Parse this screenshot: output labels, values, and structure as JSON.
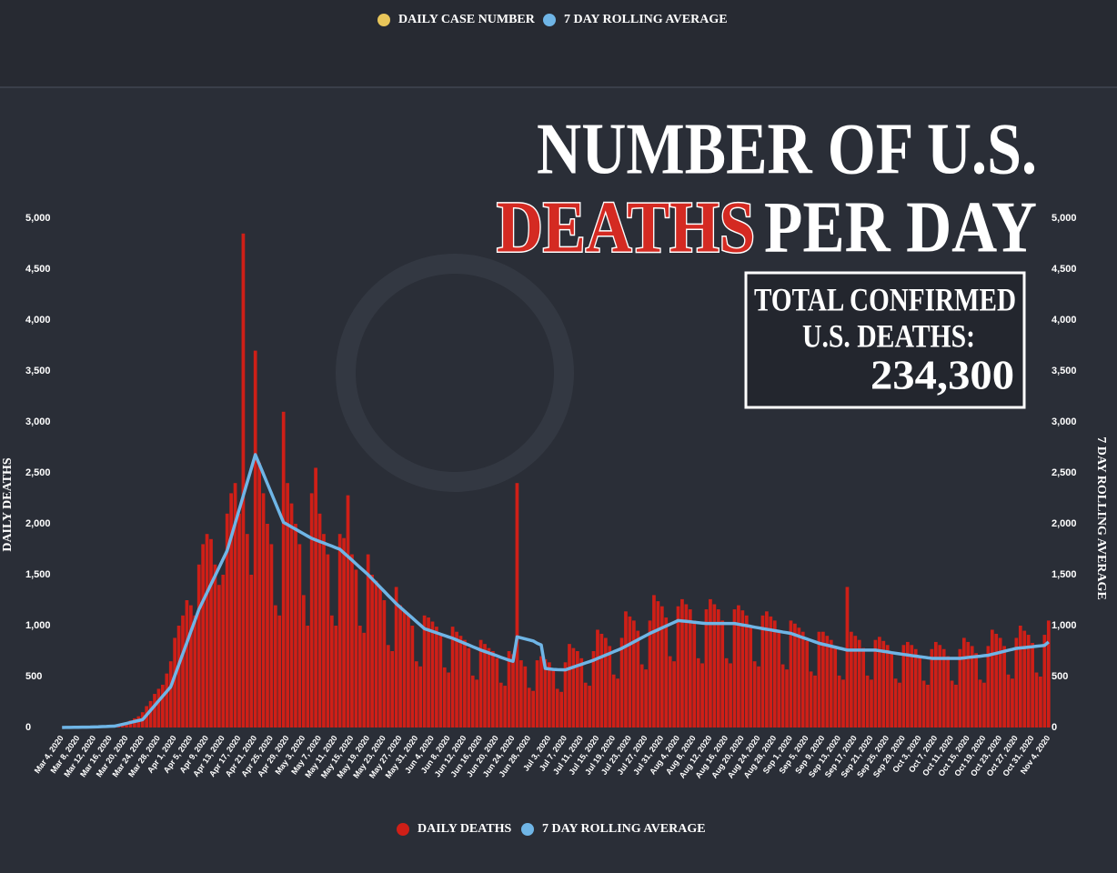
{
  "chart_data": {
    "type": "bar",
    "top_legend": [
      {
        "name": "DAILY CASE NUMBER",
        "color": "#e8c55a"
      },
      {
        "name": "7 DAY ROLLING AVERAGE",
        "color": "#6fb5e6"
      }
    ],
    "title": {
      "line1": "NUMBER OF U.S.",
      "highlight": "DEATHS",
      "line2_rest": "PER DAY"
    },
    "total_box": {
      "line1": "TOTAL CONFIRMED",
      "line2": "U.S. DEATHS:",
      "total": "234,300"
    },
    "y_label": "DAILY DEATHS",
    "y2_label": "7 DAY ROLLING AVERAGE",
    "ylim": [
      0,
      5000
    ],
    "yticks": [
      0,
      500,
      {
        "value": 1000,
        "label": "1,000"
      },
      {
        "value": 1500,
        "label": "1,500"
      },
      {
        "value": 2000,
        "label": "2,000"
      },
      {
        "value": 2500,
        "label": "2,500"
      },
      {
        "value": 3000,
        "label": "3,000"
      },
      {
        "value": 3500,
        "label": "3,500"
      },
      {
        "value": 4000,
        "label": "4,000"
      },
      {
        "value": 4500,
        "label": "4,500"
      },
      {
        "value": 5000,
        "label": "5,000"
      }
    ],
    "y2lim": [
      0,
      5000
    ],
    "y2ticks": [
      0,
      500,
      {
        "value": 1000,
        "label": "1,000"
      },
      {
        "value": 1500,
        "label": "1,500"
      },
      {
        "value": 2000,
        "label": "2,000"
      },
      {
        "value": 2500,
        "label": "2,500"
      },
      {
        "value": 3000,
        "label": "3,000"
      },
      {
        "value": 3500,
        "label": "3,500"
      },
      {
        "value": 4000,
        "label": "4,000"
      },
      {
        "value": 4500,
        "label": "4,500"
      },
      {
        "value": 5000,
        "label": "5,000"
      }
    ],
    "categories": [
      "Mar 4, 2020",
      null,
      null,
      null,
      "Mar 8, 2020",
      null,
      null,
      null,
      "Mar 12, 2020",
      null,
      null,
      null,
      "Mar 16, 2020",
      null,
      null,
      null,
      "Mar 20, 2020",
      null,
      null,
      null,
      "Mar 24, 2020",
      null,
      null,
      null,
      "Mar 28, 2020",
      null,
      null,
      null,
      "Apr 1, 2020",
      null,
      null,
      null,
      "Apr 5, 2020",
      null,
      null,
      null,
      "Apr 9, 2020",
      null,
      null,
      null,
      "Apr 13, 2020",
      null,
      null,
      null,
      "Apr 17, 2020",
      null,
      null,
      null,
      "Apr 21, 2020",
      null,
      null,
      null,
      "Apr 25, 2020",
      null,
      null,
      null,
      "Apr 29, 2020",
      null,
      null,
      null,
      "May 3, 2020",
      null,
      null,
      null,
      "May 7, 2020",
      null,
      null,
      null,
      "May 11, 2020",
      null,
      null,
      null,
      "May 15, 2020",
      null,
      null,
      null,
      "May 19, 2020",
      null,
      null,
      null,
      "May 23, 2020",
      null,
      null,
      null,
      "May 27, 2020",
      null,
      null,
      null,
      "May 31, 2020",
      null,
      null,
      null,
      "Jun 4, 2020",
      null,
      null,
      null,
      "Jun 8, 2020",
      null,
      null,
      null,
      "Jun 12, 2020",
      null,
      null,
      null,
      "Jun 16, 2020",
      null,
      null,
      null,
      "Jun 20, 2020",
      null,
      null,
      null,
      "Jun 24, 2020",
      null,
      null,
      null,
      "Jun 28, 2020",
      null,
      null,
      null,
      null,
      "Jul 3, 2020",
      null,
      null,
      null,
      "Jul 7, 2020",
      null,
      null,
      null,
      "Jul 11, 2020",
      null,
      null,
      null,
      "Jul 15, 2020",
      null,
      null,
      null,
      "Jul 19, 2020",
      null,
      null,
      null,
      "Jul 23, 2020",
      null,
      null,
      null,
      "Jul 27, 2020",
      null,
      null,
      null,
      "Jul 31, 2020",
      null,
      null,
      null,
      "Aug 4, 2020",
      null,
      null,
      null,
      "Aug 8, 2020",
      null,
      null,
      null,
      "Aug 12, 2020",
      null,
      null,
      null,
      "Aug 16, 2020",
      null,
      null,
      null,
      "Aug 20, 2020",
      null,
      null,
      null,
      "Aug 24, 2020",
      null,
      null,
      null,
      "Aug 28, 2020",
      null,
      null,
      null,
      "Sep 1, 2020",
      null,
      null,
      null,
      "Sep 5, 2020",
      null,
      null,
      null,
      "Sep 9, 2020",
      null,
      null,
      null,
      "Sep 13, 2020",
      null,
      null,
      null,
      "Sep 17, 2020",
      null,
      null,
      null,
      "Sep 21, 2020",
      null,
      null,
      null,
      "Sep 25, 2020",
      null,
      null,
      null,
      "Sep 29, 2020",
      null,
      null,
      null,
      "Oct 3, 2020",
      null,
      null,
      null,
      "Oct 7, 2020",
      null,
      null,
      null,
      "Oct 11, 2020",
      null,
      null,
      null,
      "Oct 15, 2020",
      null,
      null,
      null,
      "Oct 19, 2020",
      null,
      null,
      null,
      "Oct 23, 2020",
      null,
      null,
      null,
      "Oct 27, 2020",
      null,
      null,
      null,
      "Oct 31, 2020",
      null,
      null,
      null,
      "Nov 4, 2020"
    ],
    "series": [
      {
        "name": "DAILY DEATHS",
        "color": "#cf1f17",
        "values": [
          1,
          1,
          2,
          3,
          2,
          4,
          5,
          7,
          8,
          10,
          12,
          14,
          18,
          24,
          30,
          40,
          50,
          70,
          90,
          110,
          150,
          210,
          260,
          330,
          380,
          420,
          530,
          650,
          880,
          1000,
          1100,
          1250,
          1200,
          1100,
          1600,
          1800,
          1900,
          1850,
          1600,
          1400,
          1500,
          2100,
          2300,
          2400,
          2100,
          4850,
          1900,
          1500,
          3700,
          2600,
          2300,
          2000,
          1800,
          1200,
          1100,
          3100,
          2400,
          2200,
          2000,
          1800,
          1300,
          1000,
          2300,
          2550,
          2100,
          1900,
          1700,
          1100,
          1000,
          1900,
          1860,
          2280,
          1700,
          1550,
          1000,
          930,
          1700,
          1500,
          1440,
          1380,
          1250,
          810,
          750,
          1380,
          1200,
          1150,
          1100,
          1000,
          650,
          600,
          1100,
          1080,
          1040,
          990,
          900,
          590,
          540,
          990,
          940,
          900,
          860,
          780,
          510,
          470,
          860,
          820,
          780,
          750,
          680,
          440,
          410,
          750,
          720,
          2400,
          660,
          600,
          390,
          360,
          660,
          700,
          670,
          640,
          580,
          380,
          350,
          640,
          820,
          780,
          750,
          680,
          440,
          410,
          750,
          960,
          920,
          880,
          800,
          520,
          480,
          880,
          1140,
          1090,
          1050,
          950,
          620,
          570,
          1050,
          1300,
          1240,
          1190,
          1080,
          700,
          650,
          1190,
          1260,
          1210,
          1160,
          1050,
          680,
          630,
          1160,
          1260,
          1210,
          1160,
          1050,
          680,
          630,
          1160,
          1200,
          1150,
          1100,
          1000,
          650,
          600,
          1100,
          1140,
          1090,
          1050,
          950,
          620,
          570,
          1050,
          1020,
          980,
          940,
          850,
          550,
          510,
          940,
          940,
          900,
          860,
          780,
          510,
          470,
          1380,
          940,
          900,
          860,
          780,
          510,
          470,
          860,
          890,
          850,
          810,
          740,
          480,
          440,
          810,
          840,
          810,
          770,
          700,
          460,
          420,
          770,
          840,
          810,
          770,
          700,
          460,
          420,
          770,
          880,
          840,
          800,
          730,
          470,
          440,
          800,
          960,
          920,
          880,
          800,
          520,
          480,
          880,
          1000,
          950,
          910,
          830,
          540,
          500,
          910,
          1050
        ]
      },
      {
        "name": "7 DAY ROLLING AVERAGE",
        "color": "#6fb5e6",
        "axis": "y2",
        "values": [
          0,
          1,
          1,
          2,
          2,
          3,
          3,
          4,
          6,
          7,
          9,
          10,
          12,
          13,
          22,
          31,
          40,
          50,
          59,
          68,
          77,
          123,
          169,
          215,
          262,
          308,
          354,
          400,
          509,
          617,
          726,
          834,
          943,
          1051,
          1160,
          1242,
          1325,
          1407,
          1489,
          1571,
          1654,
          1736,
          1871,
          2005,
          2140,
          2275,
          2410,
          2544,
          2679,
          2584,
          2489,
          2394,
          2299,
          2204,
          2109,
          2014,
          1992,
          1969,
          1947,
          1924,
          1902,
          1879,
          1857,
          1842,
          1826,
          1811,
          1796,
          1781,
          1765,
          1750,
          1714,
          1679,
          1643,
          1607,
          1571,
          1536,
          1500,
          1459,
          1419,
          1378,
          1337,
          1296,
          1256,
          1215,
          1180,
          1145,
          1110,
          1075,
          1040,
          1005,
          970,
          957,
          943,
          930,
          916,
          903,
          889,
          876,
          859,
          843,
          826,
          810,
          793,
          777,
          760,
          746,
          732,
          718,
          704,
          689,
          675,
          661,
          650,
          890,
          880,
          870,
          860,
          850,
          827,
          810,
          580,
          575,
          570,
          568,
          567,
          566,
          580,
          593,
          607,
          620,
          634,
          647,
          661,
          678,
          694,
          711,
          727,
          744,
          760,
          777,
          798,
          819,
          840,
          861,
          882,
          903,
          924,
          942,
          960,
          978,
          996,
          1014,
          1032,
          1050,
          1046,
          1042,
          1038,
          1033,
          1029,
          1025,
          1021,
          1021,
          1021,
          1021,
          1021,
          1021,
          1021,
          1021,
          1014,
          1007,
          1000,
          993,
          985,
          978,
          971,
          964,
          958,
          951,
          944,
          937,
          931,
          924,
          910,
          896,
          882,
          869,
          855,
          841,
          827,
          817,
          808,
          798,
          789,
          779,
          770,
          760,
          760,
          760,
          760,
          760,
          760,
          760,
          760,
          754,
          748,
          742,
          735,
          729,
          723,
          717,
          712,
          706,
          701,
          695,
          690,
          684,
          679,
          679,
          679,
          679,
          679,
          679,
          679,
          679,
          683,
          688,
          692,
          696,
          700,
          705,
          709,
          719,
          728,
          738,
          748,
          758,
          767,
          777,
          781,
          785,
          789,
          793,
          798,
          802,
          806,
          840
        ]
      }
    ]
  }
}
